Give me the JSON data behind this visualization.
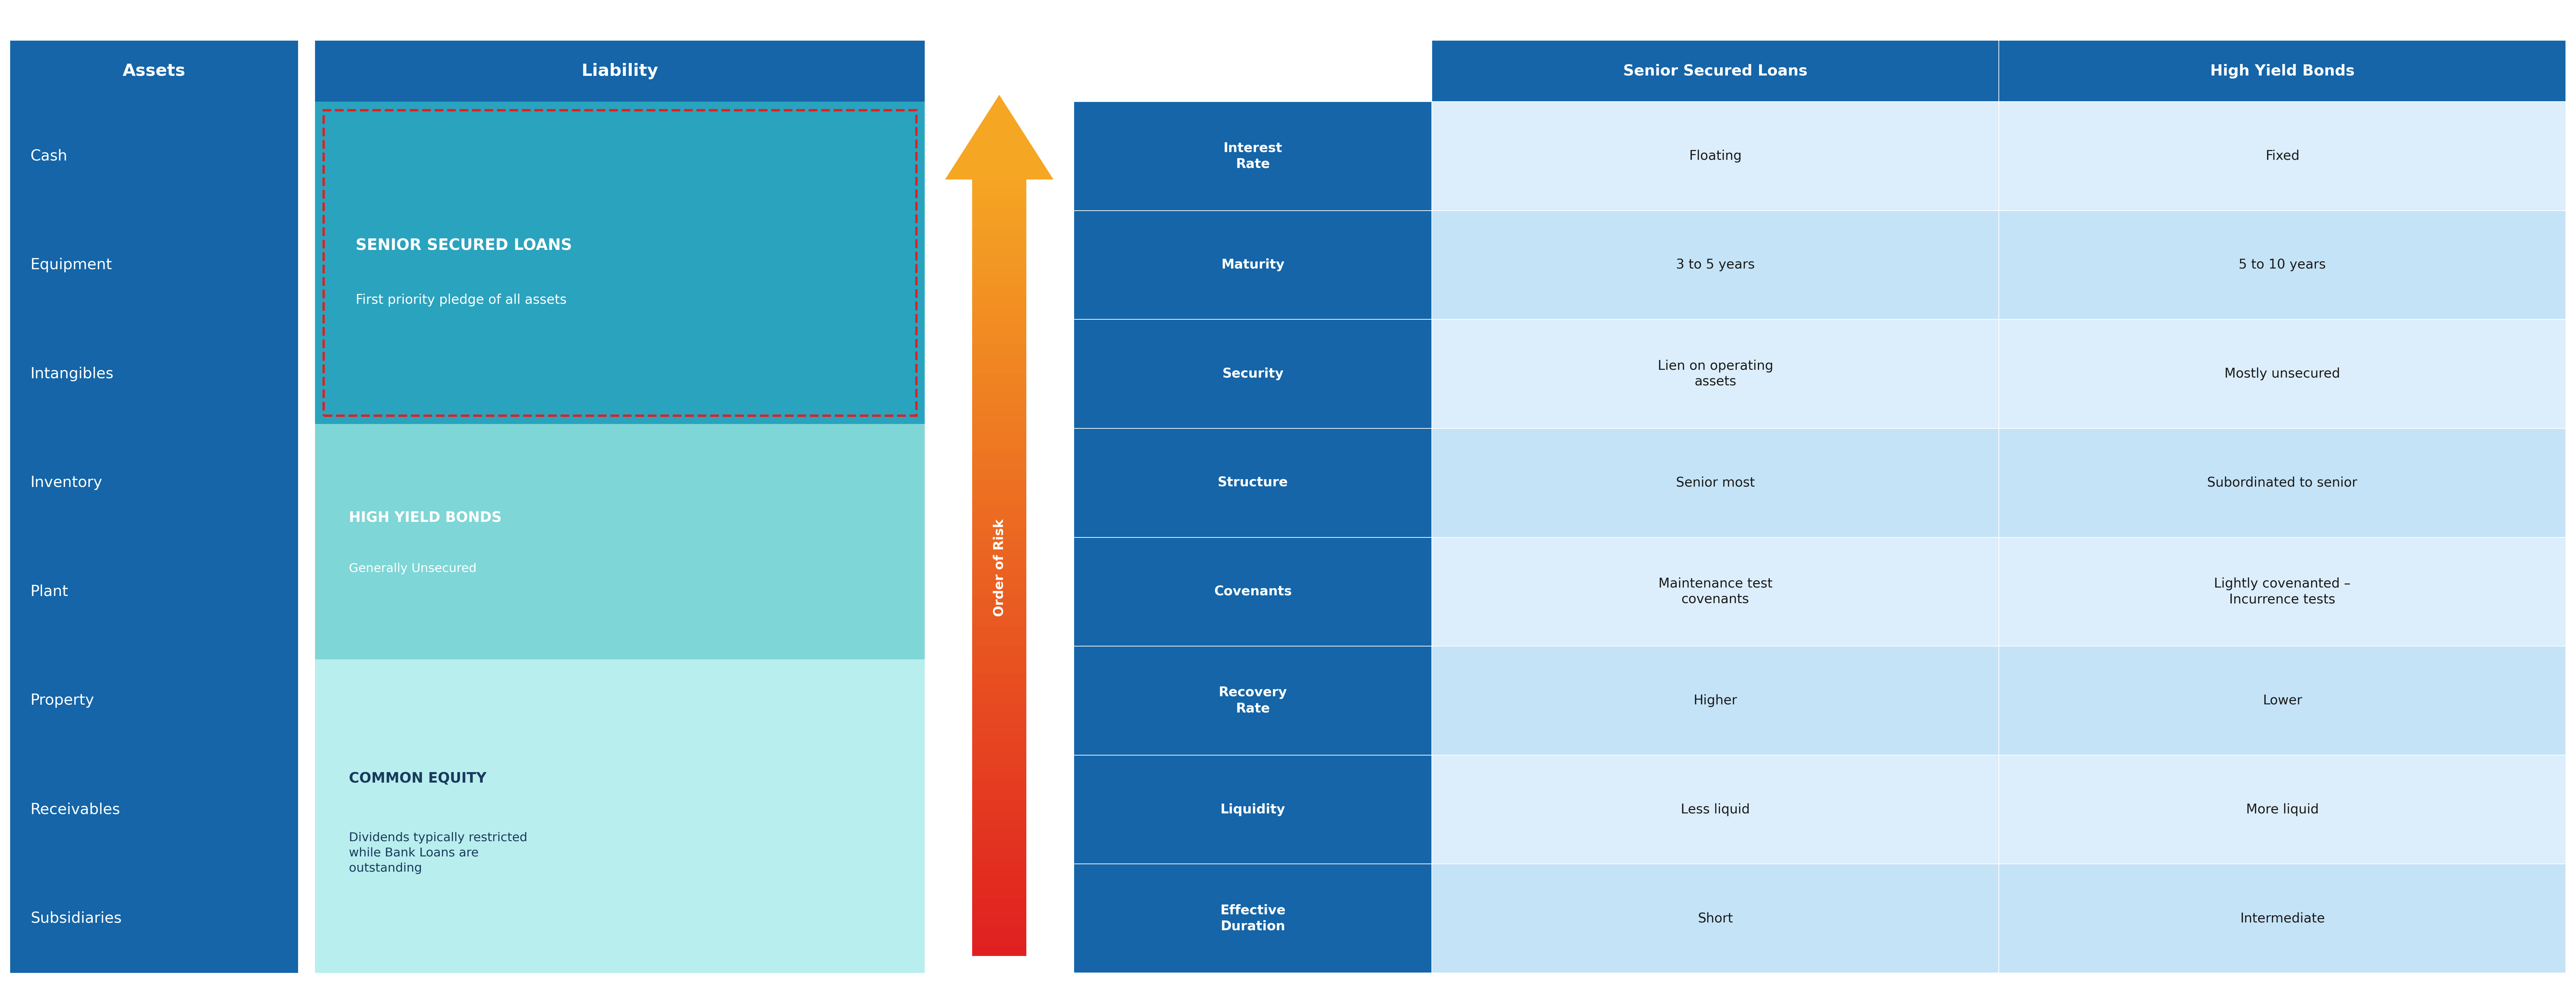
{
  "fig_width": 76.05,
  "fig_height": 29.53,
  "dpi": 100,
  "bg_color": "#ffffff",
  "assets_header": "Assets",
  "assets_items": [
    "Cash",
    "Equipment",
    "Intangibles",
    "Inventory",
    "Plant",
    "Property",
    "Receivables",
    "Subsidiaries"
  ],
  "assets_header_color": "#1565a8",
  "assets_bg_color": "#1565a8",
  "assets_text_color": "#ffffff",
  "liability_header": "Liability",
  "liability_header_color": "#1565a8",
  "senior_secured_title": "SENIOR SECURED LOANS",
  "senior_secured_sub": "First priority pledge of all assets",
  "senior_secured_bg": "#2aa3be",
  "senior_secured_border": "#e02020",
  "high_yield_title": "HIGH YIELD BONDS",
  "high_yield_sub": "Generally Unsecured",
  "high_yield_bg": "#7fd6d6",
  "common_equity_title": "COMMON EQUITY",
  "common_equity_sub": "Dividends typically restricted\nwhile Bank Loans are\noutstanding",
  "common_equity_bg": "#b8eeee",
  "arrow_color_top": "#f5a623",
  "arrow_color_bottom": "#e02020",
  "arrow_label": "Order of Risk",
  "table_header_col1": "Senior Secured Loans",
  "table_header_col2": "High Yield Bonds",
  "table_header_bg": "#1565a8",
  "table_header_text_color": "#ffffff",
  "table_row_label_bg": "#1565a8",
  "table_row_label_text": "#ffffff",
  "table_cell_bg_alt1": "#dceefb",
  "table_cell_bg_alt2": "#c5e3f7",
  "table_rows": [
    {
      "label": "Interest\nRate",
      "col1": "Floating",
      "col2": "Fixed"
    },
    {
      "label": "Maturity",
      "col1": "3 to 5 years",
      "col2": "5 to 10 years"
    },
    {
      "label": "Security",
      "col1": "Lien on operating\nassets",
      "col2": "Mostly unsecured"
    },
    {
      "label": "Structure",
      "col1": "Senior most",
      "col2": "Subordinated to senior"
    },
    {
      "label": "Covenants",
      "col1": "Maintenance test\ncovenants",
      "col2": "Lightly covenanted –\nIncurrence tests"
    },
    {
      "label": "Recovery\nRate",
      "col1": "Higher",
      "col2": "Lower"
    },
    {
      "label": "Liquidity",
      "col1": "Less liquid",
      "col2": "More liquid"
    },
    {
      "label": "Effective\nDuration",
      "col1": "Short",
      "col2": "Intermediate"
    }
  ]
}
